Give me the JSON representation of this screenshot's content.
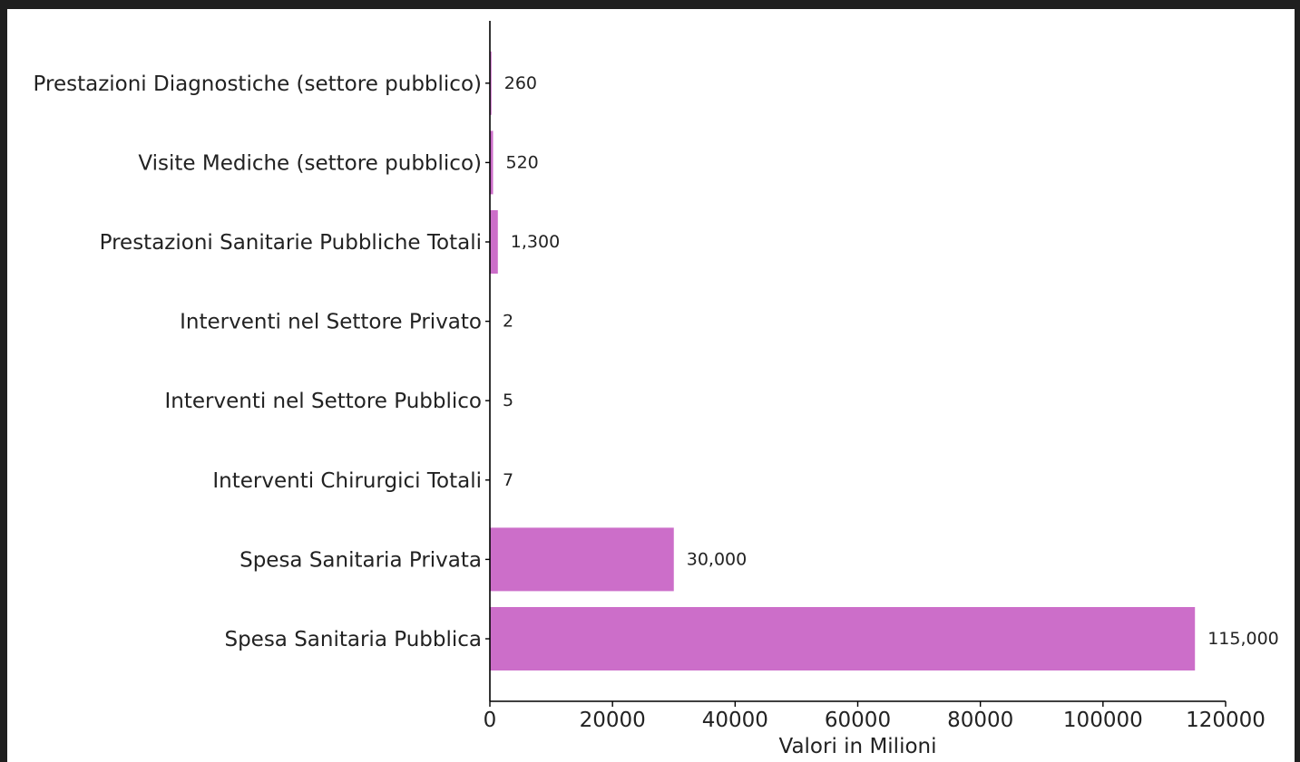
{
  "chart_data": {
    "type": "bar",
    "orientation": "horizontal",
    "title": "",
    "xlabel": "Valori in Milioni",
    "ylabel": "",
    "categories": [
      "Spesa Sanitaria Pubblica",
      "Spesa Sanitaria Privata",
      "Interventi Chirurgici Totali",
      "Interventi nel Settore Pubblico",
      "Interventi nel Settore Privato",
      "Prestazioni Sanitarie Pubbliche Totali",
      "Visite Mediche (settore pubblico)",
      "Prestazioni Diagnostiche (settore pubblico)"
    ],
    "values": [
      115000,
      30000,
      7,
      5,
      2,
      1300,
      520,
      260
    ],
    "value_labels": [
      "115,000",
      "30,000",
      "7",
      "5",
      "2",
      "1,300",
      "520",
      "260"
    ],
    "xlim": [
      0,
      120000
    ],
    "xticks": [
      0,
      20000,
      40000,
      60000,
      80000,
      100000,
      120000
    ],
    "xtick_labels": [
      "0",
      "20000",
      "40000",
      "60000",
      "80000",
      "100000",
      "120000"
    ],
    "bar_color": "#cc6ec9",
    "grid": false
  }
}
